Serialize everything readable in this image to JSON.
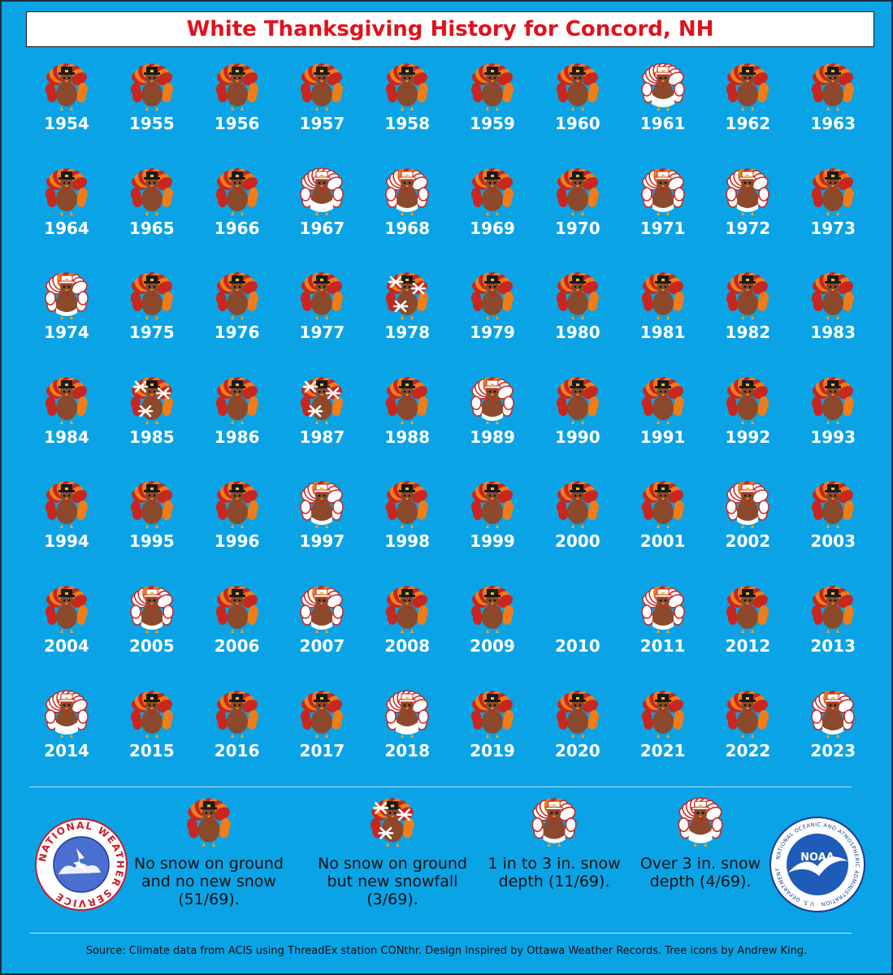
{
  "title": "White Thanksgiving History for Concord, NH",
  "palette": {
    "background": "#0aa3e6",
    "title_color": "#e2111b",
    "turkey_body": "#8b4a2b",
    "feather_red": "#c8261f",
    "feather_orange": "#ef7d1a",
    "snow": "#ffffff"
  },
  "categories": {
    "none": "No snow on ground and no new snow (51/69).",
    "newsnow": "No snow on ground but new snowfall (3/69).",
    "depth1to3": "1 in to 3 in. snow depth (11/69).",
    "over3": "Over 3 in. snow depth (4/69)."
  },
  "years": [
    {
      "year": "1954",
      "cat": "none"
    },
    {
      "year": "1955",
      "cat": "none"
    },
    {
      "year": "1956",
      "cat": "none"
    },
    {
      "year": "1957",
      "cat": "none"
    },
    {
      "year": "1958",
      "cat": "none"
    },
    {
      "year": "1959",
      "cat": "none"
    },
    {
      "year": "1960",
      "cat": "none"
    },
    {
      "year": "1961",
      "cat": "over3"
    },
    {
      "year": "1962",
      "cat": "none"
    },
    {
      "year": "1963",
      "cat": "none"
    },
    {
      "year": "1964",
      "cat": "none"
    },
    {
      "year": "1965",
      "cat": "none"
    },
    {
      "year": "1966",
      "cat": "none"
    },
    {
      "year": "1967",
      "cat": "over3"
    },
    {
      "year": "1968",
      "cat": "depth1to3"
    },
    {
      "year": "1969",
      "cat": "none"
    },
    {
      "year": "1970",
      "cat": "none"
    },
    {
      "year": "1971",
      "cat": "depth1to3"
    },
    {
      "year": "1972",
      "cat": "depth1to3"
    },
    {
      "year": "1973",
      "cat": "none"
    },
    {
      "year": "1974",
      "cat": "depth1to3"
    },
    {
      "year": "1975",
      "cat": "none"
    },
    {
      "year": "1976",
      "cat": "none"
    },
    {
      "year": "1977",
      "cat": "none"
    },
    {
      "year": "1978",
      "cat": "newsnow"
    },
    {
      "year": "1979",
      "cat": "none"
    },
    {
      "year": "1980",
      "cat": "none"
    },
    {
      "year": "1981",
      "cat": "none"
    },
    {
      "year": "1982",
      "cat": "none"
    },
    {
      "year": "1983",
      "cat": "none"
    },
    {
      "year": "1984",
      "cat": "none"
    },
    {
      "year": "1985",
      "cat": "newsnow"
    },
    {
      "year": "1986",
      "cat": "none"
    },
    {
      "year": "1987",
      "cat": "newsnow"
    },
    {
      "year": "1988",
      "cat": "none"
    },
    {
      "year": "1989",
      "cat": "depth1to3"
    },
    {
      "year": "1990",
      "cat": "none"
    },
    {
      "year": "1991",
      "cat": "none"
    },
    {
      "year": "1992",
      "cat": "none"
    },
    {
      "year": "1993",
      "cat": "none"
    },
    {
      "year": "1994",
      "cat": "none"
    },
    {
      "year": "1995",
      "cat": "none"
    },
    {
      "year": "1996",
      "cat": "none"
    },
    {
      "year": "1997",
      "cat": "depth1to3"
    },
    {
      "year": "1998",
      "cat": "none"
    },
    {
      "year": "1999",
      "cat": "none"
    },
    {
      "year": "2000",
      "cat": "none"
    },
    {
      "year": "2001",
      "cat": "none"
    },
    {
      "year": "2002",
      "cat": "depth1to3"
    },
    {
      "year": "2003",
      "cat": "none"
    },
    {
      "year": "2004",
      "cat": "none"
    },
    {
      "year": "2005",
      "cat": "depth1to3"
    },
    {
      "year": "2006",
      "cat": "none"
    },
    {
      "year": "2007",
      "cat": "depth1to3"
    },
    {
      "year": "2008",
      "cat": "none"
    },
    {
      "year": "2009",
      "cat": "none"
    },
    {
      "year": "2010",
      "cat": "missing"
    },
    {
      "year": "2011",
      "cat": "depth1to3"
    },
    {
      "year": "2012",
      "cat": "none"
    },
    {
      "year": "2013",
      "cat": "none"
    },
    {
      "year": "2014",
      "cat": "over3"
    },
    {
      "year": "2015",
      "cat": "none"
    },
    {
      "year": "2016",
      "cat": "none"
    },
    {
      "year": "2017",
      "cat": "none"
    },
    {
      "year": "2018",
      "cat": "over3"
    },
    {
      "year": "2019",
      "cat": "none"
    },
    {
      "year": "2020",
      "cat": "none"
    },
    {
      "year": "2021",
      "cat": "none"
    },
    {
      "year": "2022",
      "cat": "none"
    },
    {
      "year": "2023",
      "cat": "depth1to3"
    }
  ],
  "legend": [
    {
      "cat": "none",
      "label": "No snow on ground and no new snow (51/69)."
    },
    {
      "cat": "newsnow",
      "label": "No snow on ground but new snowfall (3/69)."
    },
    {
      "cat": "depth1to3",
      "label": "1 in to 3 in. snow depth (11/69)."
    },
    {
      "cat": "over3",
      "label": "Over 3 in. snow depth (4/69)."
    }
  ],
  "logos": {
    "nws": "NATIONAL WEATHER SERVICE",
    "noaa": "NOAA",
    "noaa_ring": "NATIONAL OCEANIC AND ATMOSPHERIC ADMINISTRATION · U.S. DEPARTMENT OF COMMERCE"
  },
  "source": "Source: Climate data from ACIS using ThreadEx station CONthr. Design inspired by Ottawa Weather Records. Tree icons by Andrew King."
}
